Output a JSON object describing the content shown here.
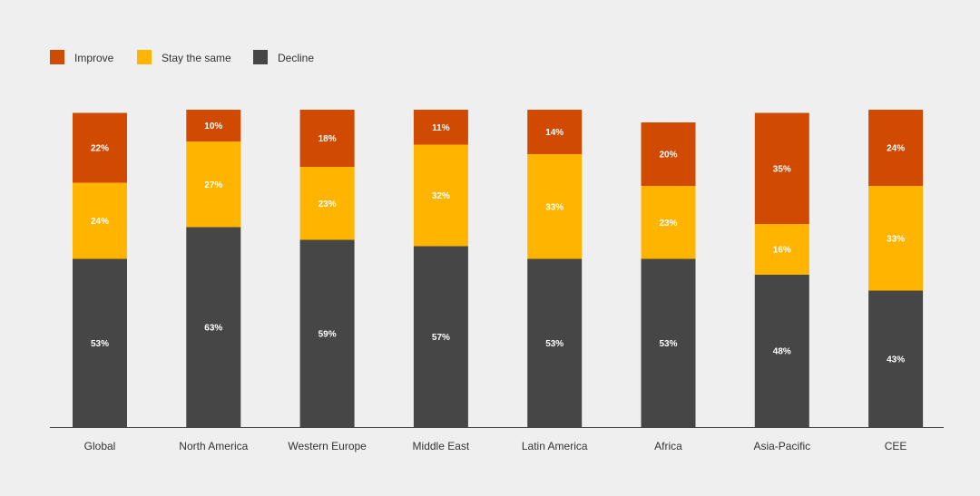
{
  "chart_data": {
    "type": "bar",
    "stacked": true,
    "title": "",
    "xlabel": "",
    "ylabel": "",
    "categories": [
      "Global",
      "North America",
      "Western Europe",
      "Middle East",
      "Latin America",
      "Africa",
      "Asia-Pacific",
      "CEE"
    ],
    "series": [
      {
        "name": "Decline",
        "color": "#464646",
        "values": [
          53,
          63,
          59,
          57,
          53,
          53,
          48,
          43
        ]
      },
      {
        "name": "Stay the same",
        "color": "#ffb400",
        "values": [
          24,
          27,
          23,
          32,
          33,
          23,
          16,
          33
        ]
      },
      {
        "name": "Improve",
        "color": "#d04a02",
        "values": [
          22,
          10,
          18,
          11,
          14,
          20,
          35,
          24
        ]
      }
    ],
    "legend": {
      "position": "top-left",
      "order": [
        "Improve",
        "Stay the same",
        "Decline"
      ]
    },
    "value_suffix": "%",
    "ylim": [
      0,
      100
    ],
    "grid": false
  }
}
